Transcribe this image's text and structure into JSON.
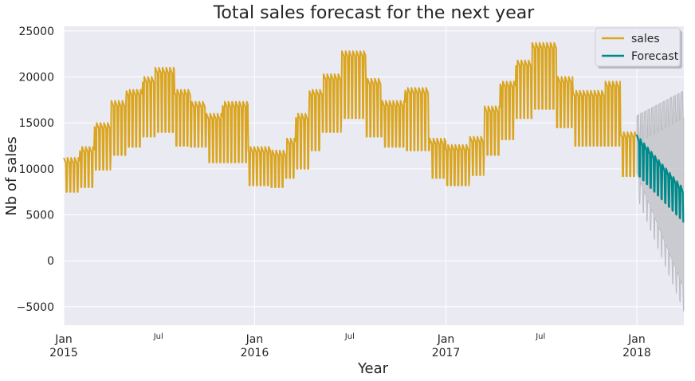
{
  "chart_data": {
    "type": "line",
    "title": "Total sales forecast for the next year",
    "xlabel": "Year",
    "ylabel": "Nb of sales",
    "ylim": [
      -7000,
      25500
    ],
    "yticks": [
      25000,
      20000,
      15000,
      10000,
      5000,
      0,
      -5000
    ],
    "ytick_labels": [
      "25000",
      "20000",
      "15000",
      "10000",
      "5000",
      "0",
      "−5000"
    ],
    "xlim": [
      "2015-01-01",
      "2018-04-01"
    ],
    "xticks_major": [
      {
        "date": "2015-01-01",
        "line1": "Jan",
        "line2": "2015"
      },
      {
        "date": "2016-01-01",
        "line1": "Jan",
        "line2": "2016"
      },
      {
        "date": "2017-01-01",
        "line1": "Jan",
        "line2": "2017"
      },
      {
        "date": "2018-01-01",
        "line1": "Jan",
        "line2": "2018"
      }
    ],
    "xticks_minor": [
      {
        "date": "2015-07-01",
        "label": "Jul"
      },
      {
        "date": "2016-07-01",
        "label": "Jul"
      },
      {
        "date": "2017-07-01",
        "label": "Jul"
      }
    ],
    "grid": true,
    "legend_position": "top-right",
    "series": [
      {
        "name": "sales",
        "color": "#DAA520",
        "description_of_values": "weekly oscillating daily totals",
        "x_start": "2015-01-01",
        "x_end": "2017-12-31",
        "weekly_bands": [
          {
            "from": "2015-01-01",
            "low": 7500,
            "high": 11200
          },
          {
            "from": "2015-02-01",
            "low": 8000,
            "high": 12400
          },
          {
            "from": "2015-03-01",
            "low": 9900,
            "high": 15000
          },
          {
            "from": "2015-04-01",
            "low": 11500,
            "high": 17400
          },
          {
            "from": "2015-05-01",
            "low": 12400,
            "high": 18600
          },
          {
            "from": "2015-06-01",
            "low": 13500,
            "high": 20000
          },
          {
            "from": "2015-06-25",
            "low": 14000,
            "high": 21000
          },
          {
            "from": "2015-08-01",
            "low": 12500,
            "high": 18600
          },
          {
            "from": "2015-09-01",
            "low": 12400,
            "high": 17300
          },
          {
            "from": "2015-10-01",
            "low": 10700,
            "high": 16000
          },
          {
            "from": "2015-11-01",
            "low": 10700,
            "high": 17300
          },
          {
            "from": "2015-12-20",
            "low": 8200,
            "high": 12400
          },
          {
            "from": "2016-02-01",
            "low": 8000,
            "high": 12000
          },
          {
            "from": "2016-03-01",
            "low": 9000,
            "high": 13300
          },
          {
            "from": "2016-03-20",
            "low": 10000,
            "high": 16000
          },
          {
            "from": "2016-04-15",
            "low": 12000,
            "high": 18600
          },
          {
            "from": "2016-05-10",
            "low": 14000,
            "high": 20300
          },
          {
            "from": "2016-06-15",
            "low": 15500,
            "high": 22800
          },
          {
            "from": "2016-08-01",
            "low": 13500,
            "high": 19800
          },
          {
            "from": "2016-09-01",
            "low": 12400,
            "high": 17400
          },
          {
            "from": "2016-10-15",
            "low": 12000,
            "high": 18800
          },
          {
            "from": "2016-12-01",
            "low": 9000,
            "high": 13300
          },
          {
            "from": "2017-01-01",
            "low": 8200,
            "high": 12600
          },
          {
            "from": "2017-02-15",
            "low": 9300,
            "high": 13500
          },
          {
            "from": "2017-03-15",
            "low": 11500,
            "high": 16800
          },
          {
            "from": "2017-04-15",
            "low": 13200,
            "high": 19500
          },
          {
            "from": "2017-05-15",
            "low": 15500,
            "high": 21800
          },
          {
            "from": "2017-06-15",
            "low": 16500,
            "high": 23700
          },
          {
            "from": "2017-08-01",
            "low": 14500,
            "high": 20000
          },
          {
            "from": "2017-09-01",
            "low": 12500,
            "high": 18500
          },
          {
            "from": "2017-11-01",
            "low": 12500,
            "high": 19500
          },
          {
            "from": "2017-12-01",
            "low": 9200,
            "high": 14000
          }
        ]
      },
      {
        "name": "Forecast",
        "color": "#008B8B",
        "x_start": "2018-01-01",
        "x_end": "2018-04-01",
        "start_low": 9500,
        "start_high": 13700,
        "end_low": 4200,
        "end_high": 7800,
        "interval_color": "#bfbfc6",
        "interval_start_low": 7000,
        "interval_start_high": 15800,
        "interval_end_low": -5500,
        "interval_end_high": 18500
      }
    ]
  }
}
